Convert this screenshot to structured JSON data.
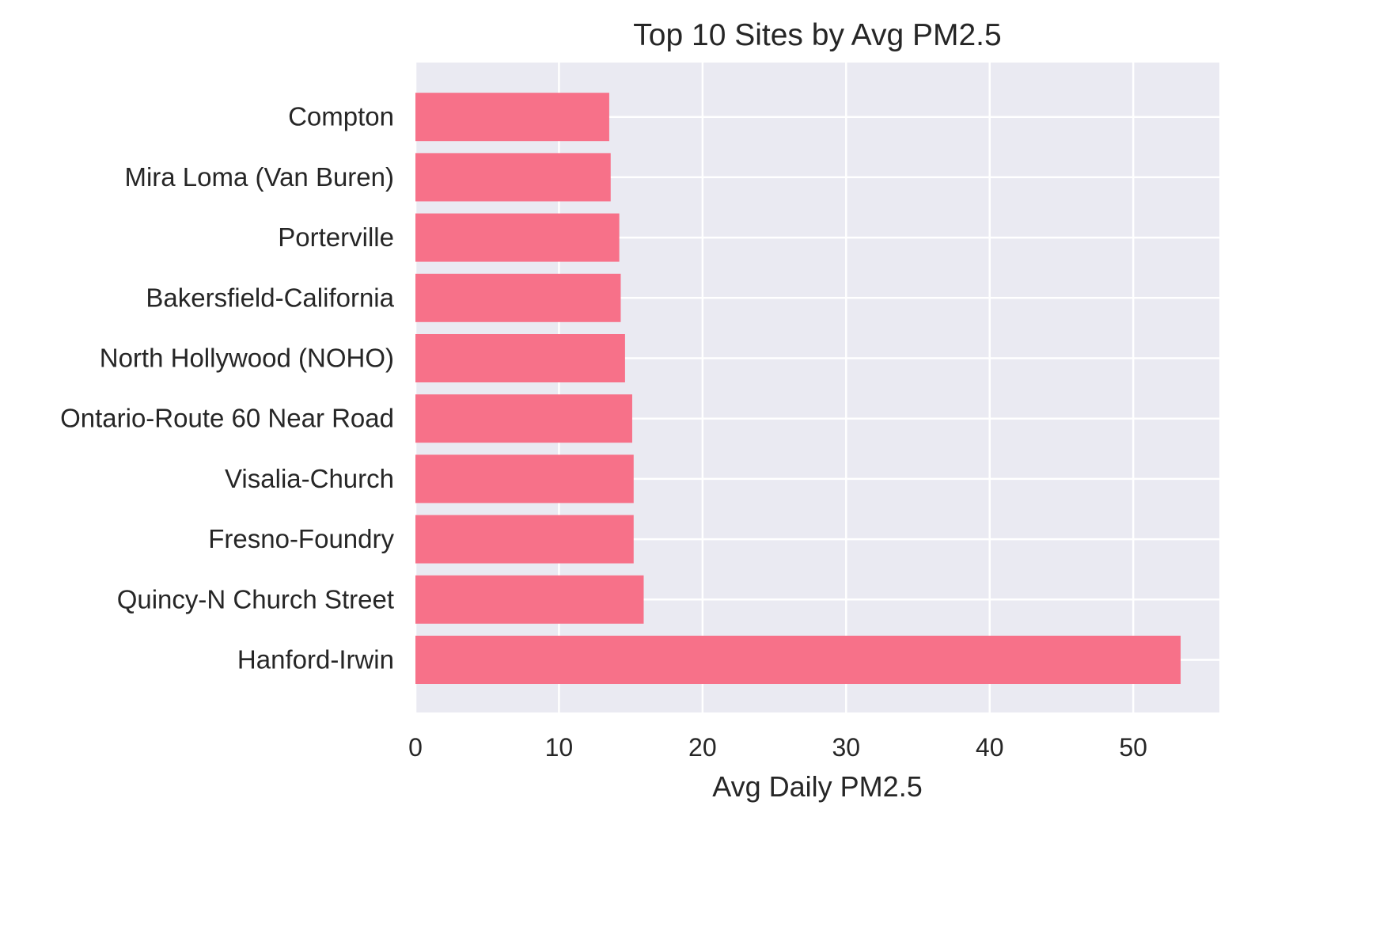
{
  "chart_data": {
    "type": "bar",
    "orientation": "horizontal",
    "title": "Top 10 Sites by Avg PM2.5",
    "xlabel": "Avg Daily PM2.5",
    "ylabel": "",
    "categories": [
      "Hanford-Irwin",
      "Quincy-N Church Street",
      "Fresno-Foundry",
      "Visalia-Church",
      "Ontario-Route 60 Near Road",
      "North Hollywood (NOHO)",
      "Bakersfield-California",
      "Porterville",
      "Mira Loma (Van Buren)",
      "Compton"
    ],
    "values": [
      53.3,
      15.9,
      15.2,
      15.2,
      15.1,
      14.6,
      14.3,
      14.2,
      13.6,
      13.5
    ],
    "xlim": [
      0,
      56
    ],
    "xticks": [
      0,
      10,
      20,
      30,
      40,
      50
    ],
    "grid": true,
    "legend": "none"
  },
  "colors": {
    "bar": "#f77189",
    "plot_background": "#eaeaf2",
    "grid": "#ffffff",
    "text": "#262626"
  }
}
